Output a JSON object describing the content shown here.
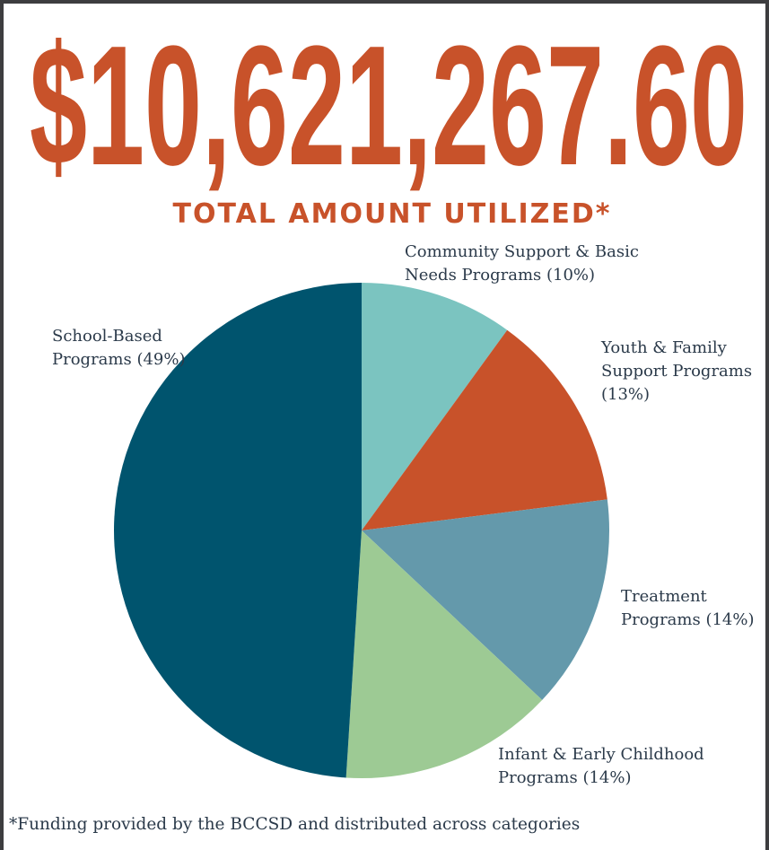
{
  "chart_data": {
    "type": "pie",
    "title": "$10,621,267.60",
    "subtitle": "TOTAL AMOUNT UTILIZED*",
    "note": "*Funding provided by the BCCSD and distributed across categories",
    "categories": [
      "Community Support & Basic Needs Programs",
      "Youth & Family Support Programs",
      "Treatment Programs",
      "Infant & Early Childhood Programs",
      "School-Based Programs"
    ],
    "values": [
      10,
      13,
      14,
      14,
      49
    ],
    "value_labels": [
      "(10%)",
      "(13%)",
      "(14%)",
      "(14%)",
      "(49%)"
    ],
    "colors": [
      "#7bc4c0",
      "#c8522a",
      "#6499ab",
      "#9dca94",
      "#00546e"
    ]
  }
}
